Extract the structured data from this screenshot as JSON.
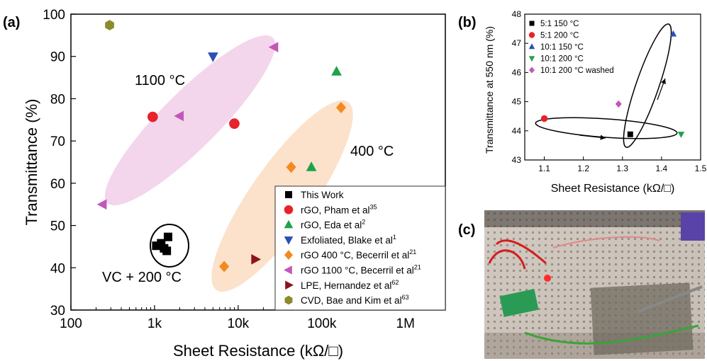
{
  "figure": {
    "panel_a_label": "(a)",
    "panel_b_label": "(b)",
    "panel_c_label": "(c)"
  },
  "chart_data": [
    {
      "panel": "(a)",
      "type": "scatter",
      "x_scale": "log",
      "xlabel": "Sheet Resistance (kΩ/□)",
      "ylabel": "Transmittance (%)",
      "xlim": [
        100,
        3000000
      ],
      "ylim": [
        30,
        100
      ],
      "x_ticks": [
        100,
        1000,
        10000,
        100000,
        1000000
      ],
      "x_tick_labels": [
        "100",
        "1k",
        "10k",
        "100k",
        "1M"
      ],
      "y_ticks": [
        30,
        40,
        50,
        60,
        70,
        80,
        90,
        100
      ],
      "y_tick_labels": [
        "30",
        "40",
        "50",
        "60",
        "70",
        "80",
        "90",
        "100"
      ],
      "legend_position": "bottom-right",
      "annotations": [
        {
          "text": "1100 °C"
        },
        {
          "text": "400 °C"
        },
        {
          "text": "VC + 200 °C"
        }
      ],
      "series": [
        {
          "name": "This Work",
          "marker": "square",
          "color": "#000000",
          "x": [
            1050,
            1300,
            1450,
            1200,
            1400
          ],
          "y": [
            45.2,
            44.6,
            47.3,
            45.8,
            44.0
          ]
        },
        {
          "name": "rGO, Pham et al",
          "sup": "35",
          "marker": "circle",
          "color": "#e8222a",
          "x": [
            950,
            9000
          ],
          "y": [
            75.7,
            74.1
          ]
        },
        {
          "name": "rGO, Eda et al",
          "sup": "2",
          "marker": "triangle-up",
          "color": "#1ea24a",
          "x": [
            75000,
            150000
          ],
          "y": [
            63.8,
            86.4
          ]
        },
        {
          "name": "Exfoliated, Blake et al",
          "sup": "1",
          "marker": "triangle-down",
          "color": "#2a4fb6",
          "x": [
            5000
          ],
          "y": [
            90.0
          ]
        },
        {
          "name": "rGO 400 °C, Becerril et al",
          "sup": "21",
          "marker": "diamond",
          "color": "#f28a1e",
          "x": [
            6800,
            43000,
            170000
          ],
          "y": [
            40.3,
            63.8,
            77.9
          ]
        },
        {
          "name": "rGO 1100 °C, Becerril et al",
          "sup": "21",
          "marker": "triangle-left",
          "color": "#c357b8",
          "x": [
            240,
            2000,
            27000
          ],
          "y": [
            55.0,
            75.9,
            92.2
          ]
        },
        {
          "name": "LPE, Hernandez et al",
          "sup": "62",
          "marker": "triangle-right",
          "color": "#8a1418",
          "x": [
            16000
          ],
          "y": [
            42.0
          ]
        },
        {
          "name": "CVD, Bae and Kim et al",
          "sup": "63",
          "marker": "hexagon",
          "color": "#8b8b2c",
          "x": [
            290
          ],
          "y": [
            97.4
          ]
        }
      ]
    },
    {
      "panel": "(b)",
      "type": "scatter",
      "xlabel": "Sheet Resistance (kΩ/□)",
      "ylabel": "Transmittance at 550 nm (%)",
      "xlim": [
        1.05,
        1.5
      ],
      "ylim": [
        43,
        48
      ],
      "x_ticks": [
        1.1,
        1.2,
        1.3,
        1.4,
        1.5
      ],
      "x_tick_labels": [
        "1.1",
        "1.2",
        "1.3",
        "1.4",
        "1.5"
      ],
      "y_ticks": [
        43,
        44,
        45,
        46,
        47,
        48
      ],
      "y_tick_labels": [
        "43",
        "44",
        "45",
        "46",
        "47",
        "48"
      ],
      "legend_position": "top-left",
      "series": [
        {
          "name": "5:1 150 °C",
          "marker": "square",
          "color": "#000000",
          "x": [
            1.32
          ],
          "y": [
            43.88
          ]
        },
        {
          "name": "5:1 200 °C",
          "marker": "circle",
          "color": "#e8222a",
          "x": [
            1.1
          ],
          "y": [
            44.42
          ]
        },
        {
          "name": "10:1 150 °C",
          "marker": "triangle-up",
          "color": "#2a4fb6",
          "x": [
            1.43
          ],
          "y": [
            47.32
          ]
        },
        {
          "name": "10:1 200 °C",
          "marker": "triangle-down",
          "color": "#1ea24a",
          "x": [
            1.45
          ],
          "y": [
            43.88
          ]
        },
        {
          "name": "10:1 200 °C washed",
          "marker": "diamond",
          "color": "#c357b8",
          "x": [
            1.29
          ],
          "y": [
            44.92
          ]
        }
      ]
    }
  ]
}
